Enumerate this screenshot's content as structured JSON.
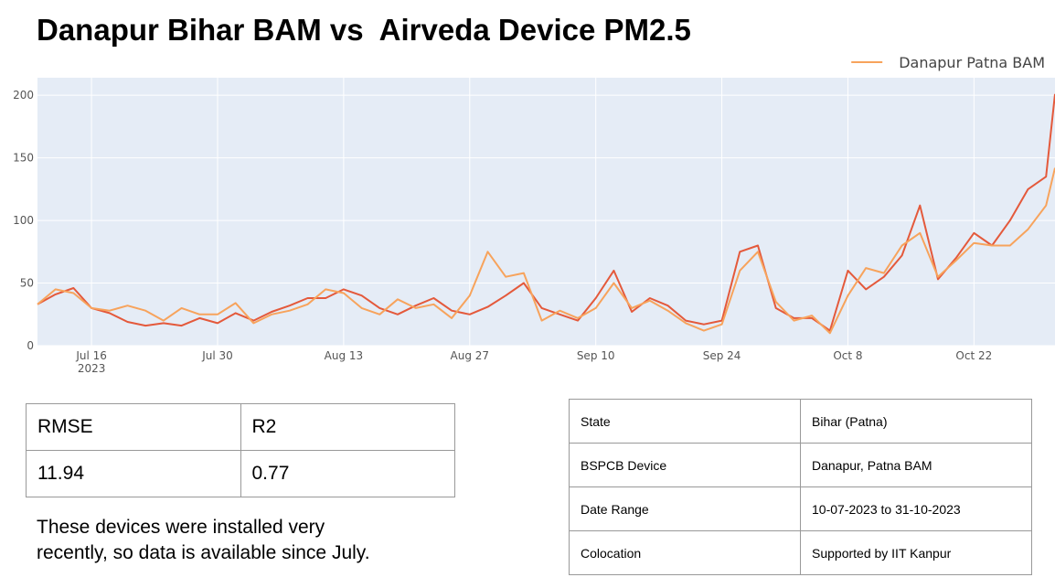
{
  "chart_data": {
    "type": "line",
    "title": "Danapur Bihar BAM vs  Airveda Device PM2.5",
    "x": [
      "2023-07-10",
      "2023-07-12",
      "2023-07-14",
      "2023-07-16",
      "2023-07-18",
      "2023-07-20",
      "2023-07-22",
      "2023-07-24",
      "2023-07-26",
      "2023-07-28",
      "2023-07-30",
      "2023-08-01",
      "2023-08-03",
      "2023-08-05",
      "2023-08-07",
      "2023-08-09",
      "2023-08-11",
      "2023-08-13",
      "2023-08-15",
      "2023-08-17",
      "2023-08-19",
      "2023-08-21",
      "2023-08-23",
      "2023-08-25",
      "2023-08-27",
      "2023-08-29",
      "2023-08-31",
      "2023-09-02",
      "2023-09-04",
      "2023-09-06",
      "2023-09-08",
      "2023-09-10",
      "2023-09-12",
      "2023-09-14",
      "2023-09-16",
      "2023-09-18",
      "2023-09-20",
      "2023-09-22",
      "2023-09-24",
      "2023-09-26",
      "2023-09-28",
      "2023-09-30",
      "2023-10-02",
      "2023-10-04",
      "2023-10-06",
      "2023-10-08",
      "2023-10-10",
      "2023-10-12",
      "2023-10-14",
      "2023-10-16",
      "2023-10-18",
      "2023-10-20",
      "2023-10-22",
      "2023-10-24",
      "2023-10-26",
      "2023-10-28",
      "2023-10-30",
      "2023-10-31"
    ],
    "series": [
      {
        "color": "#e4593b",
        "values": [
          33,
          41,
          46,
          30,
          26,
          19,
          16,
          18,
          16,
          22,
          18,
          26,
          20,
          27,
          32,
          38,
          38,
          45,
          40,
          30,
          25,
          32,
          38,
          28,
          25,
          31,
          40,
          50,
          30,
          25,
          20,
          38,
          60,
          27,
          38,
          32,
          20,
          17,
          20,
          75,
          80,
          30,
          22,
          22,
          12,
          60,
          45,
          55,
          72,
          112,
          53,
          70,
          90,
          80,
          100,
          125,
          135,
          201
        ]
      },
      {
        "name": "Danapur Patna BAM",
        "color": "#f7a35c",
        "values": [
          33,
          45,
          42,
          30,
          28,
          32,
          28,
          20,
          30,
          25,
          25,
          34,
          18,
          25,
          28,
          33,
          45,
          42,
          30,
          25,
          37,
          30,
          33,
          22,
          40,
          75,
          55,
          58,
          20,
          28,
          22,
          30,
          50,
          30,
          36,
          28,
          18,
          12,
          17,
          60,
          75,
          35,
          20,
          24,
          10,
          40,
          62,
          58,
          80,
          90,
          55,
          68,
          82,
          80,
          80,
          93,
          112,
          142
        ]
      }
    ],
    "xlim": [
      "2023-07-10",
      "2023-10-31"
    ],
    "xticks": [
      {
        "value": "2023-07-16",
        "label": "Jul 16\n2023"
      },
      {
        "value": "2023-07-30",
        "label": "Jul 30"
      },
      {
        "value": "2023-08-13",
        "label": "Aug 13"
      },
      {
        "value": "2023-08-27",
        "label": "Aug 27"
      },
      {
        "value": "2023-09-10",
        "label": "Sep 10"
      },
      {
        "value": "2023-09-24",
        "label": "Sep 24"
      },
      {
        "value": "2023-10-08",
        "label": "Oct 8"
      },
      {
        "value": "2023-10-22",
        "label": "Oct 22"
      }
    ],
    "ylim": [
      0,
      214
    ],
    "yticks": [
      0,
      50,
      100,
      150,
      200
    ],
    "grid": true,
    "legend": "top-right"
  },
  "metrics_table": {
    "header": [
      "RMSE",
      "R2"
    ],
    "rows": [
      [
        "11.94",
        "0.77"
      ]
    ]
  },
  "note": "These devices were installed very recently, so data is available since July.",
  "info_table": {
    "rows": [
      [
        "State",
        "Bihar (Patna)"
      ],
      [
        "BSPCB Device",
        "Danapur, Patna BAM"
      ],
      [
        "Date Range",
        "10-07-2023 to 31-10-2023"
      ],
      [
        "Colocation",
        "Supported by IIT Kanpur"
      ]
    ]
  }
}
